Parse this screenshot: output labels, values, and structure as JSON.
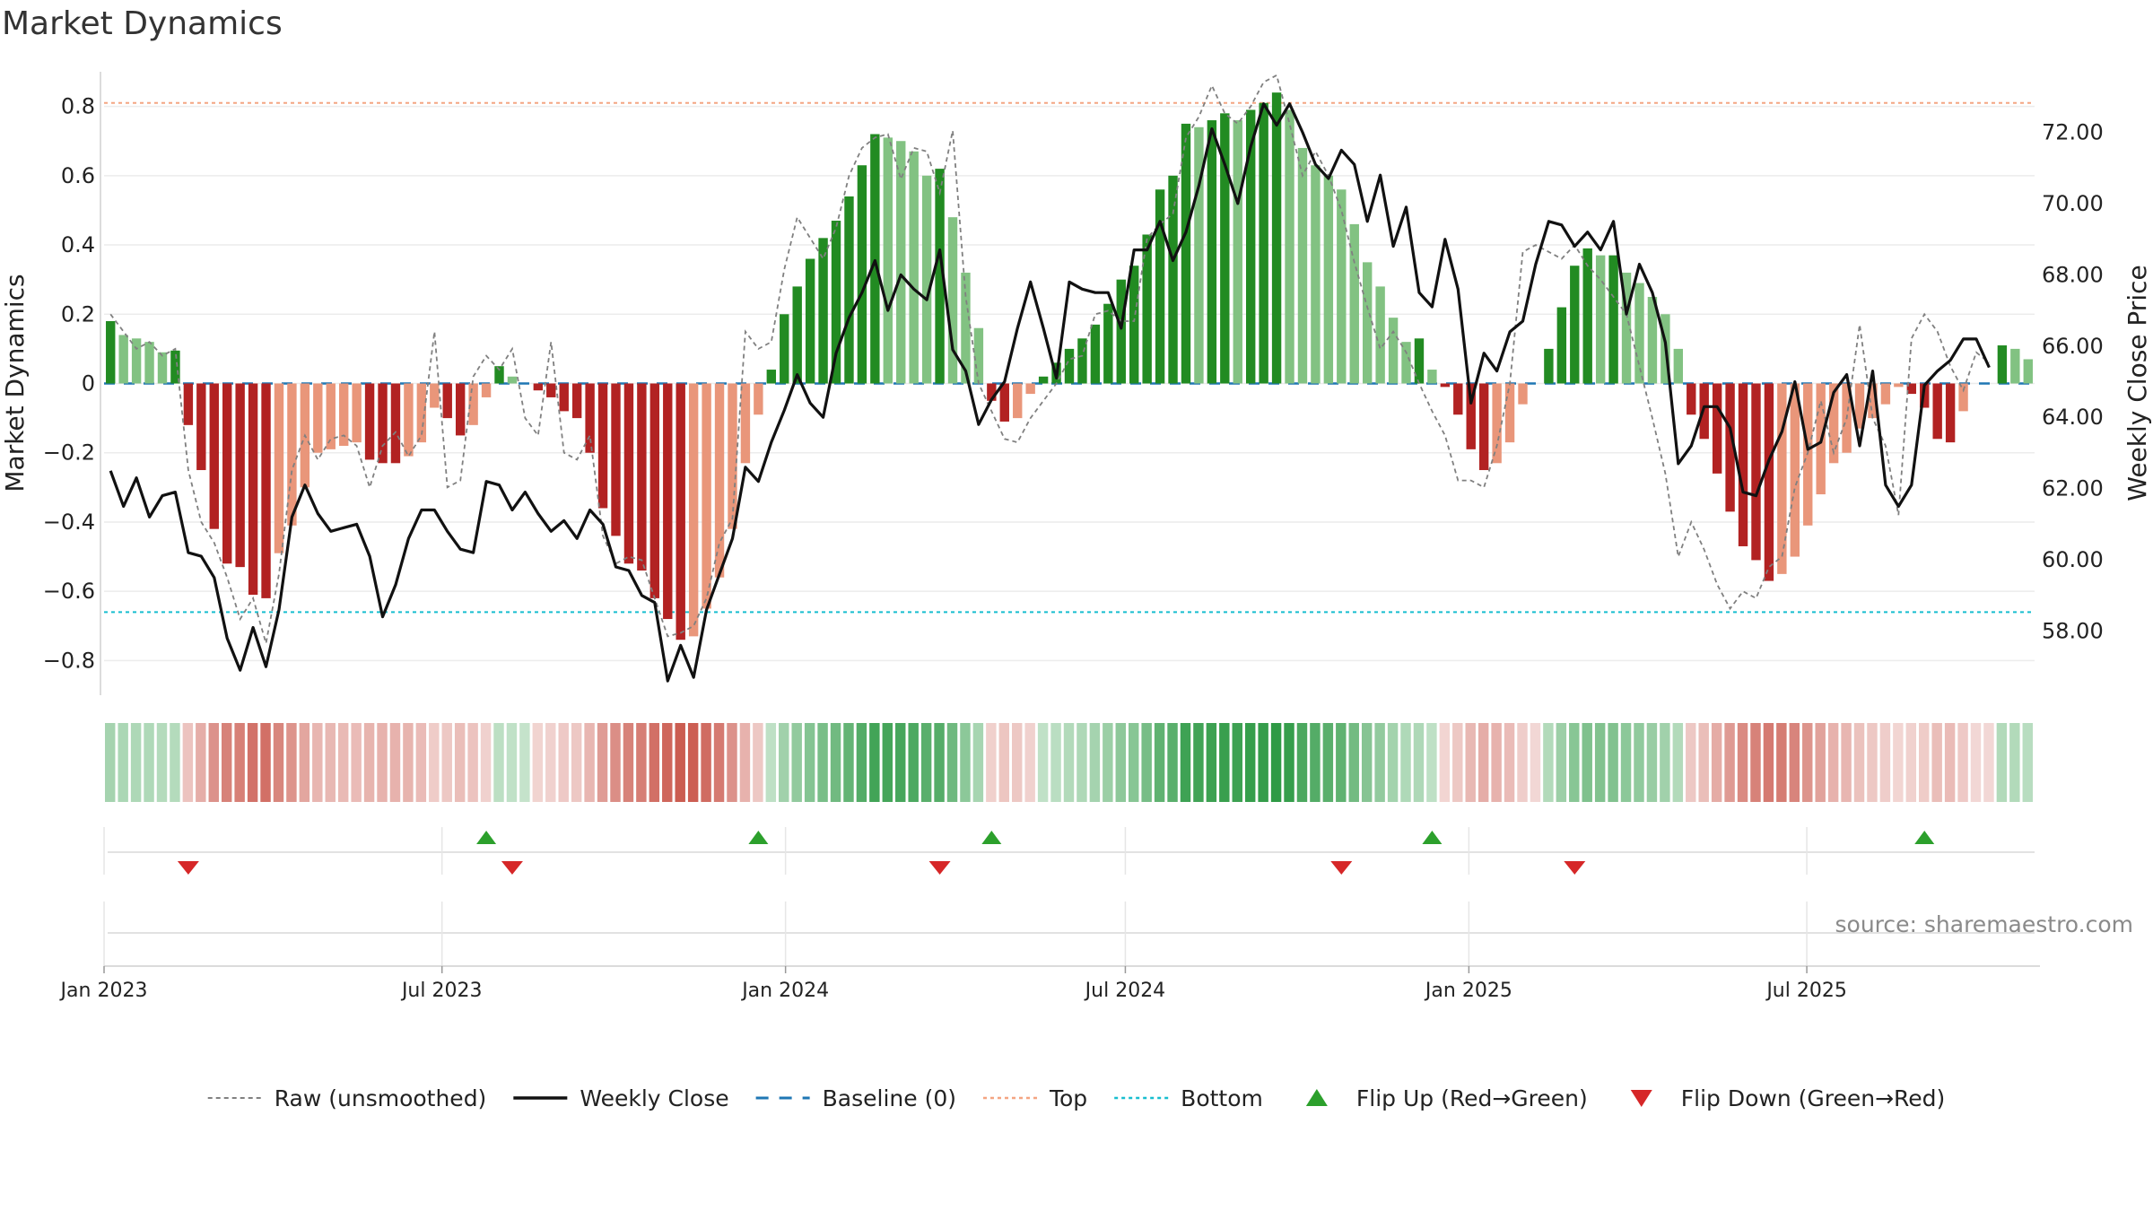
{
  "title": "Market Dynamics",
  "source": "source: sharemaestro.com",
  "colors": {
    "strong_green": "#228b22",
    "light_green": "#82c282",
    "strong_red": "#b22222",
    "light_red": "#e9967a",
    "weekly_close": "#111111",
    "raw": "#808080",
    "baseline": "#1f77b4",
    "top": "#f4a582",
    "bottom": "#17becf",
    "flip_up": "#2ca02c",
    "flip_down": "#d62728"
  },
  "chart_data": {
    "type": "bar",
    "title": "Market Dynamics",
    "ylabel_left": "Market Dynamics",
    "ylabel_right": "Weekly Close Price",
    "ylim_left": [
      -0.9,
      0.9
    ],
    "ylim_right": [
      56.2,
      73.7
    ],
    "yticks_left": [
      "0.8",
      "0.6",
      "0.4",
      "0.2",
      "0",
      "−0.2",
      "−0.4",
      "−0.6",
      "−0.8"
    ],
    "yticks_left_values": [
      0.8,
      0.6,
      0.4,
      0.2,
      0,
      -0.2,
      -0.4,
      -0.6,
      -0.8
    ],
    "yticks_right": [
      "72.00",
      "70.00",
      "68.00",
      "66.00",
      "64.00",
      "62.00",
      "60.00",
      "58.00"
    ],
    "yticks_right_values": [
      72,
      70,
      68,
      66,
      64,
      62,
      60,
      58
    ],
    "xticks": [
      "Jan 2023",
      "Jul 2023",
      "Jan 2024",
      "Jul 2024",
      "Jan 2025",
      "Jul 2025"
    ],
    "x_start": "2023-01-01",
    "x_end": "2025-10-31",
    "xtick_dates": [
      "2023-01-01",
      "2023-07-01",
      "2024-01-01",
      "2024-07-01",
      "2025-01-01",
      "2025-07-01"
    ],
    "top_level": 0.81,
    "bottom_level": -0.66,
    "baseline": 0,
    "bars": [
      0.18,
      0.14,
      0.13,
      0.12,
      0.09,
      0.095,
      -0.12,
      -0.25,
      -0.42,
      -0.52,
      -0.53,
      -0.61,
      -0.62,
      -0.49,
      -0.41,
      -0.3,
      -0.2,
      -0.19,
      -0.18,
      -0.17,
      -0.22,
      -0.23,
      -0.23,
      -0.21,
      -0.17,
      -0.07,
      -0.1,
      -0.15,
      -0.12,
      -0.04,
      0.05,
      0.02,
      0.0,
      -0.02,
      -0.04,
      -0.08,
      -0.1,
      -0.2,
      -0.36,
      -0.44,
      -0.52,
      -0.54,
      -0.62,
      -0.68,
      -0.74,
      -0.73,
      -0.65,
      -0.56,
      -0.42,
      -0.23,
      -0.09,
      0.04,
      0.2,
      0.28,
      0.36,
      0.42,
      0.47,
      0.54,
      0.63,
      0.72,
      0.71,
      0.7,
      0.67,
      0.6,
      0.62,
      0.48,
      0.32,
      0.16,
      -0.05,
      -0.11,
      -0.1,
      -0.03,
      0.02,
      0.06,
      0.1,
      0.13,
      0.17,
      0.23,
      0.3,
      0.34,
      0.43,
      0.56,
      0.6,
      0.75,
      0.74,
      0.76,
      0.78,
      0.76,
      0.79,
      0.81,
      0.84,
      0.79,
      0.68,
      0.63,
      0.6,
      0.56,
      0.46,
      0.35,
      0.28,
      0.19,
      0.12,
      0.13,
      0.04,
      -0.01,
      -0.09,
      -0.19,
      -0.25,
      -0.23,
      -0.17,
      -0.06,
      0.0,
      0.1,
      0.22,
      0.34,
      0.39,
      0.37,
      0.37,
      0.32,
      0.29,
      0.25,
      0.2,
      0.1,
      -0.09,
      -0.16,
      -0.26,
      -0.37,
      -0.47,
      -0.51,
      -0.57,
      -0.55,
      -0.5,
      -0.41,
      -0.32,
      -0.23,
      -0.2,
      -0.13,
      -0.1,
      -0.06,
      -0.01,
      -0.03,
      -0.07,
      -0.16,
      -0.17,
      -0.08,
      0.0,
      0.0,
      0.11,
      0.1,
      0.07
    ],
    "raw": [
      0.2,
      0.15,
      0.1,
      0.12,
      0.08,
      0.1,
      -0.25,
      -0.4,
      -0.46,
      -0.56,
      -0.68,
      -0.62,
      -0.75,
      -0.55,
      -0.25,
      -0.15,
      -0.22,
      -0.16,
      -0.15,
      -0.18,
      -0.3,
      -0.18,
      -0.14,
      -0.21,
      -0.15,
      0.15,
      -0.3,
      -0.28,
      0.02,
      0.08,
      0.04,
      0.1,
      -0.1,
      -0.15,
      0.12,
      -0.2,
      -0.22,
      -0.15,
      -0.44,
      -0.52,
      -0.5,
      -0.51,
      -0.62,
      -0.73,
      -0.72,
      -0.7,
      -0.62,
      -0.46,
      -0.39,
      0.15,
      0.1,
      0.12,
      0.33,
      0.48,
      0.42,
      0.36,
      0.45,
      0.6,
      0.68,
      0.71,
      0.72,
      0.59,
      0.68,
      0.67,
      0.55,
      0.73,
      0.25,
      0.0,
      -0.08,
      -0.16,
      -0.17,
      -0.1,
      -0.05,
      0.0,
      0.07,
      0.08,
      0.2,
      0.21,
      0.18,
      0.18,
      0.42,
      0.46,
      0.49,
      0.71,
      0.77,
      0.86,
      0.78,
      0.75,
      0.8,
      0.87,
      0.89,
      0.75,
      0.6,
      0.67,
      0.6,
      0.5,
      0.35,
      0.22,
      0.1,
      0.15,
      0.09,
      0.0,
      -0.08,
      -0.15,
      -0.28,
      -0.28,
      -0.3,
      -0.18,
      0.0,
      0.38,
      0.4,
      0.38,
      0.36,
      0.4,
      0.34,
      0.3,
      0.25,
      0.2,
      0.05,
      -0.1,
      -0.26,
      -0.5,
      -0.4,
      -0.48,
      -0.58,
      -0.65,
      -0.6,
      -0.62,
      -0.53,
      -0.5,
      -0.3,
      -0.2,
      -0.05,
      -0.2,
      -0.1,
      0.17,
      -0.1,
      -0.18,
      -0.38,
      0.13,
      0.2,
      0.15,
      0.05,
      -0.02,
      0.09,
      0.06
    ],
    "weekly_close": [
      62.5,
      61.5,
      62.3,
      61.2,
      61.8,
      61.9,
      60.2,
      60.1,
      59.5,
      57.8,
      56.9,
      58.1,
      57.0,
      58.6,
      61.2,
      62.1,
      61.3,
      60.8,
      60.9,
      61.0,
      60.1,
      58.4,
      59.3,
      60.6,
      61.4,
      61.4,
      60.8,
      60.3,
      60.2,
      62.2,
      62.1,
      61.4,
      61.9,
      61.3,
      60.8,
      61.1,
      60.6,
      61.4,
      61.0,
      59.8,
      59.7,
      59.0,
      58.8,
      56.6,
      57.6,
      56.7,
      58.6,
      59.6,
      60.6,
      62.6,
      62.2,
      63.3,
      64.2,
      65.2,
      64.4,
      64.0,
      65.8,
      66.8,
      67.5,
      68.4,
      67.0,
      68.0,
      67.6,
      67.3,
      68.7,
      65.9,
      65.3,
      63.8,
      64.5,
      65.0,
      66.5,
      67.8,
      66.5,
      65.1,
      67.8,
      67.6,
      67.5,
      67.5,
      66.5,
      68.7,
      68.7,
      69.5,
      68.4,
      69.2,
      70.5,
      72.1,
      71.1,
      70.0,
      71.6,
      72.8,
      72.2,
      72.8,
      72.0,
      71.1,
      70.7,
      71.5,
      71.1,
      69.5,
      70.8,
      68.8,
      69.9,
      67.5,
      67.1,
      69.0,
      67.6,
      64.4,
      65.8,
      65.3,
      66.4,
      66.7,
      68.3,
      69.5,
      69.4,
      68.8,
      69.2,
      68.7,
      69.5,
      66.9,
      68.3,
      67.5,
      66.1,
      62.7,
      63.2,
      64.3,
      64.3,
      63.7,
      61.9,
      61.8,
      62.8,
      63.6,
      65.0,
      63.1,
      63.3,
      64.7,
      65.2,
      63.2,
      65.3,
      62.1,
      61.5,
      62.1,
      64.9,
      65.3,
      65.6,
      66.2,
      66.2,
      65.4
    ],
    "flip_up_weeks": [
      29,
      50,
      68,
      102,
      140
    ],
    "flip_down_weeks": [
      6,
      31,
      64,
      95,
      113
    ],
    "legend": [
      {
        "label": "Raw (unsmoothed)",
        "style": "dashed-gray"
      },
      {
        "label": "Weekly Close",
        "style": "solid-black"
      },
      {
        "label": "Baseline (0)",
        "style": "dashed-blue"
      },
      {
        "label": "Top",
        "style": "dotted-orange"
      },
      {
        "label": "Bottom",
        "style": "dotted-cyan"
      },
      {
        "label": "Flip Up (Red→Green)",
        "style": "triangle-up-green"
      },
      {
        "label": "Flip Down (Green→Red)",
        "style": "triangle-down-red"
      }
    ],
    "legend_position": "bottom-center",
    "grid": true
  }
}
